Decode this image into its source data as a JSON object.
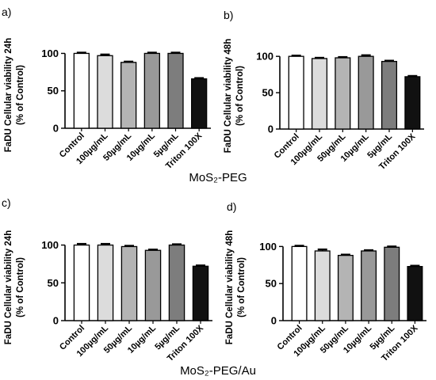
{
  "figure": {
    "group_captions": [
      "MoS₂-PEG",
      "MoS₂-PEG/Au"
    ]
  },
  "chart_data": [
    {
      "type": "bar",
      "panel_label": "a)",
      "ylabel_line1": "FaDU Cellular viability 24h",
      "ylabel_line2": "(% of Control)",
      "categories": [
        "Control",
        "100µg/mL",
        "50µg/mL",
        "10µg/mL",
        "5µg/mL",
        "Triton 100X"
      ],
      "values": [
        100,
        97,
        88,
        100,
        100,
        66
      ],
      "errors": [
        1,
        1.5,
        1,
        1,
        1,
        1
      ],
      "yticks": [
        0,
        50,
        100
      ],
      "ylim": [
        0,
        110
      ],
      "bar_colors": [
        "#ffffff",
        "#dcdcdc",
        "#b4b4b4",
        "#999999",
        "#7d7d7d",
        "#111111"
      ]
    },
    {
      "type": "bar",
      "panel_label": "b)",
      "ylabel_line1": "FaDU Cellular viability 48h",
      "ylabel_line2": "(% of Control)",
      "categories": [
        "Control",
        "100µg/mL",
        "50µg/mL",
        "10µg/mL",
        "5µg/mL",
        "Triton 100X"
      ],
      "values": [
        100,
        97,
        98,
        100,
        93,
        72
      ],
      "errors": [
        1,
        1,
        1,
        1.5,
        1,
        1
      ],
      "yticks": [
        0,
        50,
        100
      ],
      "ylim": [
        0,
        110
      ],
      "bar_colors": [
        "#ffffff",
        "#dcdcdc",
        "#b4b4b4",
        "#999999",
        "#7d7d7d",
        "#111111"
      ]
    },
    {
      "type": "bar",
      "panel_label": "c)",
      "ylabel_line1": "FaDU Cellular viability 24h",
      "ylabel_line2": "(% of Control)",
      "categories": [
        "Control",
        "100µg/mL",
        "50µg/mL",
        "10µg/mL",
        "5µg/mL",
        "Triton 100X"
      ],
      "values": [
        100,
        100,
        98,
        93,
        100,
        72
      ],
      "errors": [
        1.5,
        1.5,
        1,
        1,
        1,
        1
      ],
      "yticks": [
        0,
        50,
        100
      ],
      "ylim": [
        0,
        110
      ],
      "bar_colors": [
        "#ffffff",
        "#dcdcdc",
        "#b4b4b4",
        "#999999",
        "#7d7d7d",
        "#111111"
      ]
    },
    {
      "type": "bar",
      "panel_label": "d)",
      "ylabel_line1": "FaDU Cellular viability 48h",
      "ylabel_line2": "(% of Control)",
      "categories": [
        "Control",
        "100µg/mL",
        "50µg/mL",
        "10µg/mL",
        "5µg/mL",
        "Triton 100X"
      ],
      "values": [
        100,
        94,
        88,
        94,
        99,
        73
      ],
      "errors": [
        1,
        2,
        1,
        1,
        1,
        1
      ],
      "yticks": [
        0,
        50,
        100
      ],
      "ylim": [
        0,
        110
      ],
      "bar_colors": [
        "#ffffff",
        "#dcdcdc",
        "#b4b4b4",
        "#999999",
        "#7d7d7d",
        "#111111"
      ]
    }
  ]
}
